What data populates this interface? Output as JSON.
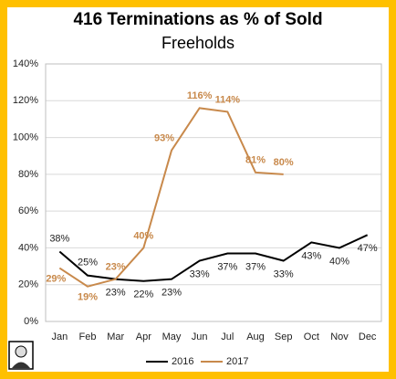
{
  "chart_data": {
    "type": "line",
    "title": "416 Terminations as % of Sold",
    "subtitle": "Freeholds",
    "categories": [
      "Jan",
      "Feb",
      "Mar",
      "Apr",
      "May",
      "Jun",
      "Jul",
      "Aug",
      "Sep",
      "Oct",
      "Nov",
      "Dec"
    ],
    "series": [
      {
        "name": "2016",
        "color": "#000000",
        "values": [
          38,
          25,
          23,
          22,
          23,
          33,
          37,
          37,
          33,
          43,
          40,
          47
        ],
        "value_labels": [
          "38%",
          "25%",
          "23%",
          "22%",
          "23%",
          "33%",
          "37%",
          "37%",
          "33%",
          "43%",
          "40%",
          "47%"
        ]
      },
      {
        "name": "2017",
        "color": "#C8894B",
        "values": [
          29,
          19,
          23,
          40,
          93,
          116,
          114,
          81,
          80,
          null,
          null,
          null
        ],
        "value_labels": [
          "29%",
          "19%",
          "23%",
          "40%",
          "93%",
          "116%",
          "114%",
          "81%",
          "80%",
          null,
          null,
          null
        ]
      }
    ],
    "ylim": [
      0,
      140
    ],
    "yticks": [
      {
        "value": 0,
        "label": "0%"
      },
      {
        "value": 20,
        "label": "20%"
      },
      {
        "value": 40,
        "label": "40%"
      },
      {
        "value": 60,
        "label": "60%"
      },
      {
        "value": 80,
        "label": "80%"
      },
      {
        "value": 100,
        "label": "100%"
      },
      {
        "value": 120,
        "label": "120%"
      },
      {
        "value": 140,
        "label": "140%"
      }
    ],
    "grid": true,
    "legend": "bottom"
  }
}
